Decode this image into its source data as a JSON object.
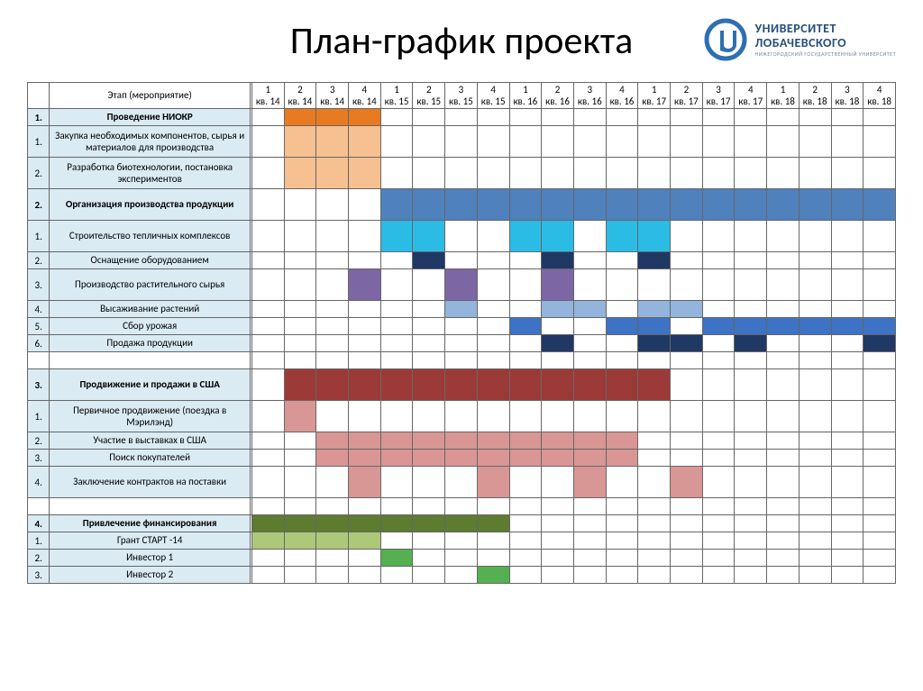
{
  "title": "План-график проекта",
  "logo": {
    "line1": "УНИВЕРСИТЕТ",
    "line2": "ЛОБАЧЕВСКОГО",
    "sub": "НИЖЕГОРОДСКИЙ ГОСУДАРСТВЕННЫЙ УНИВЕРСИТЕТ",
    "icon_color": "#2f6fb0",
    "text_color": "#274e7a"
  },
  "table": {
    "header_label": "Этап (мероприятие)",
    "quarters": [
      "1 кв. 14",
      "2 кв. 14",
      "3 кв. 14",
      "4 кв. 14",
      "1 кв. 15",
      "2 кв. 15",
      "3 кв. 15",
      "4 кв. 15",
      "1 кв. 16",
      "2 кв. 16",
      "3 кв. 16",
      "4 кв. 16",
      "1 кв. 17",
      "2 кв. 17",
      "3 кв. 17",
      "4 кв. 17",
      "1 кв. 18",
      "2 кв. 18",
      "3 кв. 18",
      "4 кв. 18"
    ],
    "colors": {
      "orange_dark": "#e87b22",
      "orange_light": "#f7c090",
      "blue_med": "#4f81bd",
      "blue_cyan": "#2bbce6",
      "blue_dark": "#1f3864",
      "purple": "#7c66a4",
      "blue_light": "#93b4dc",
      "blue_bright": "#3d72c4",
      "navy": "#203864",
      "red_dark": "#9c3a38",
      "pink": "#d89694",
      "green_dark": "#5d7c30",
      "green_light": "#aec87a",
      "green_bright": "#54b050"
    },
    "rows": [
      {
        "num": "1.",
        "label": "Проведение НИОКР",
        "bold": true,
        "cells": {
          "1": "orange_dark",
          "2": "orange_dark",
          "3": "orange_dark"
        }
      },
      {
        "num": "1.",
        "label": "Закупка необходимых компонентов, сырья и материалов для производства",
        "cells": {
          "1": "orange_light",
          "2": "orange_light",
          "3": "orange_light"
        },
        "tall": true
      },
      {
        "num": "2.",
        "label": "Разработка биотехнологии, постановка экспериментов",
        "cells": {
          "1": "orange_light",
          "2": "orange_light",
          "3": "orange_light"
        },
        "tall": true
      },
      {
        "num": "2.",
        "label": "Организация производства продукции",
        "bold": true,
        "cells": {
          "4": "blue_med",
          "5": "blue_med",
          "6": "blue_med",
          "7": "blue_med",
          "8": "blue_med",
          "9": "blue_med",
          "10": "blue_med",
          "11": "blue_med",
          "12": "blue_med",
          "13": "blue_med",
          "14": "blue_med",
          "15": "blue_med",
          "16": "blue_med",
          "17": "blue_med",
          "18": "blue_med",
          "19": "blue_med"
        },
        "tall": true
      },
      {
        "num": "1.",
        "label": "Строительство тепличных комплексов",
        "cells": {
          "4": "blue_cyan",
          "5": "blue_cyan",
          "8": "blue_cyan",
          "9": "blue_cyan",
          "11": "blue_cyan",
          "12": "blue_cyan"
        },
        "tall": true
      },
      {
        "num": "2.",
        "label": "Оснащение оборудованием",
        "cells": {
          "5": "blue_dark",
          "9": "blue_dark",
          "12": "blue_dark"
        }
      },
      {
        "num": "3.",
        "label": "Производство растительного сырья",
        "cells": {
          "3": "purple",
          "6": "purple",
          "9": "purple"
        },
        "tall": true
      },
      {
        "num": "4.",
        "label": "Высаживание растений",
        "cells": {
          "6": "blue_light",
          "9": "blue_light",
          "10": "blue_light",
          "12": "blue_light",
          "13": "blue_light"
        }
      },
      {
        "num": "5.",
        "label": "Сбор урожая",
        "cells": {
          "8": "blue_bright",
          "11": "blue_bright",
          "12": "blue_bright",
          "14": "blue_bright",
          "15": "blue_bright",
          "16": "blue_bright",
          "17": "blue_bright",
          "18": "blue_bright",
          "19": "blue_bright"
        }
      },
      {
        "num": "6.",
        "label": "Продажа продукции",
        "cells": {
          "9": "navy",
          "12": "navy",
          "13": "navy",
          "15": "navy",
          "19": "navy"
        }
      },
      {
        "spacer": true
      },
      {
        "num": "3.",
        "label": "Продвижение и продажи в США",
        "bold": true,
        "cells": {
          "1": "red_dark",
          "2": "red_dark",
          "3": "red_dark",
          "4": "red_dark",
          "5": "red_dark",
          "6": "red_dark",
          "7": "red_dark",
          "8": "red_dark",
          "9": "red_dark",
          "10": "red_dark",
          "11": "red_dark",
          "12": "red_dark"
        },
        "tall": true
      },
      {
        "num": "1.",
        "label": "Первичное продвижение (поездка в Мэрилэнд)",
        "cells": {
          "1": "pink"
        },
        "tall": true
      },
      {
        "num": "2.",
        "label": "Участие в выставках в США",
        "cells": {
          "2": "pink",
          "3": "pink",
          "4": "pink",
          "5": "pink",
          "6": "pink",
          "7": "pink",
          "8": "pink",
          "9": "pink",
          "10": "pink",
          "11": "pink"
        }
      },
      {
        "num": "3.",
        "label": "Поиск покупателей",
        "cells": {
          "2": "pink",
          "3": "pink",
          "4": "pink",
          "5": "pink",
          "6": "pink",
          "7": "pink",
          "8": "pink",
          "9": "pink",
          "10": "pink",
          "11": "pink"
        }
      },
      {
        "num": "4.",
        "label": "Заключение контрактов на поставки",
        "cells": {
          "3": "pink",
          "7": "pink",
          "10": "pink",
          "13": "pink"
        },
        "tall": true
      },
      {
        "spacer": true
      },
      {
        "num": "4.",
        "label": "Привлечение финансирования",
        "bold": true,
        "cells": {
          "0": "green_dark",
          "1": "green_dark",
          "2": "green_dark",
          "3": "green_dark",
          "4": "green_dark",
          "5": "green_dark",
          "6": "green_dark",
          "7": "green_dark"
        }
      },
      {
        "num": "1.",
        "label": "Грант СТАРТ -14",
        "cells": {
          "0": "green_light",
          "1": "green_light",
          "2": "green_light",
          "3": "green_light"
        }
      },
      {
        "num": "2.",
        "label": "Инвестор 1",
        "cells": {
          "4": "green_bright"
        }
      },
      {
        "num": "3.",
        "label": "Инвестор 2",
        "cells": {
          "7": "green_bright"
        }
      }
    ]
  }
}
